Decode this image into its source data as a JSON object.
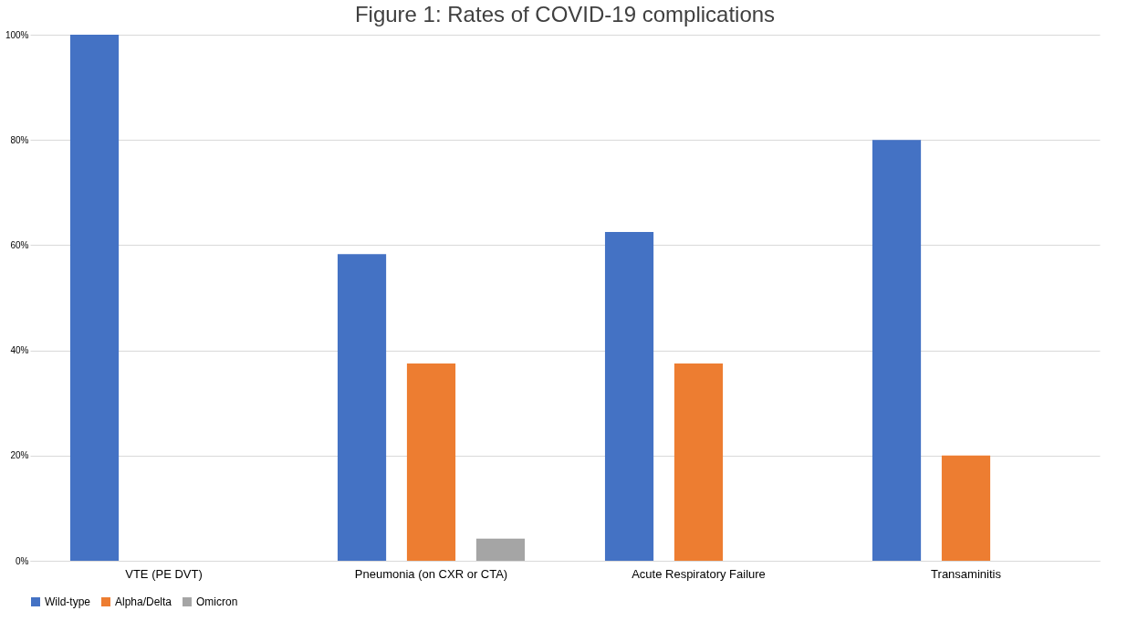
{
  "chart_data": {
    "type": "bar",
    "title": "Figure 1: Rates of COVID-19 complications",
    "categories": [
      "VTE (PE DVT)",
      "Pneumonia (on CXR or CTA)",
      "Acute Respiratory Failure",
      "Transaminitis"
    ],
    "series": [
      {
        "name": "Wild-type",
        "color": "#4472c4",
        "values": [
          100,
          58.3,
          62.5,
          80
        ]
      },
      {
        "name": "Alpha/Delta",
        "color": "#ed7d31",
        "values": [
          null,
          37.5,
          37.5,
          20
        ]
      },
      {
        "name": "Omicron",
        "color": "#a5a5a5",
        "values": [
          null,
          4.2,
          null,
          null
        ]
      }
    ],
    "ylim": [
      0,
      100
    ],
    "yticks": [
      {
        "value": 0,
        "label": "0%"
      },
      {
        "value": 20,
        "label": "20%"
      },
      {
        "value": 40,
        "label": "40%"
      },
      {
        "value": 60,
        "label": "60%"
      },
      {
        "value": 80,
        "label": "80%"
      },
      {
        "value": 100,
        "label": "100%"
      }
    ],
    "grid": "y",
    "legend": "bottom"
  }
}
